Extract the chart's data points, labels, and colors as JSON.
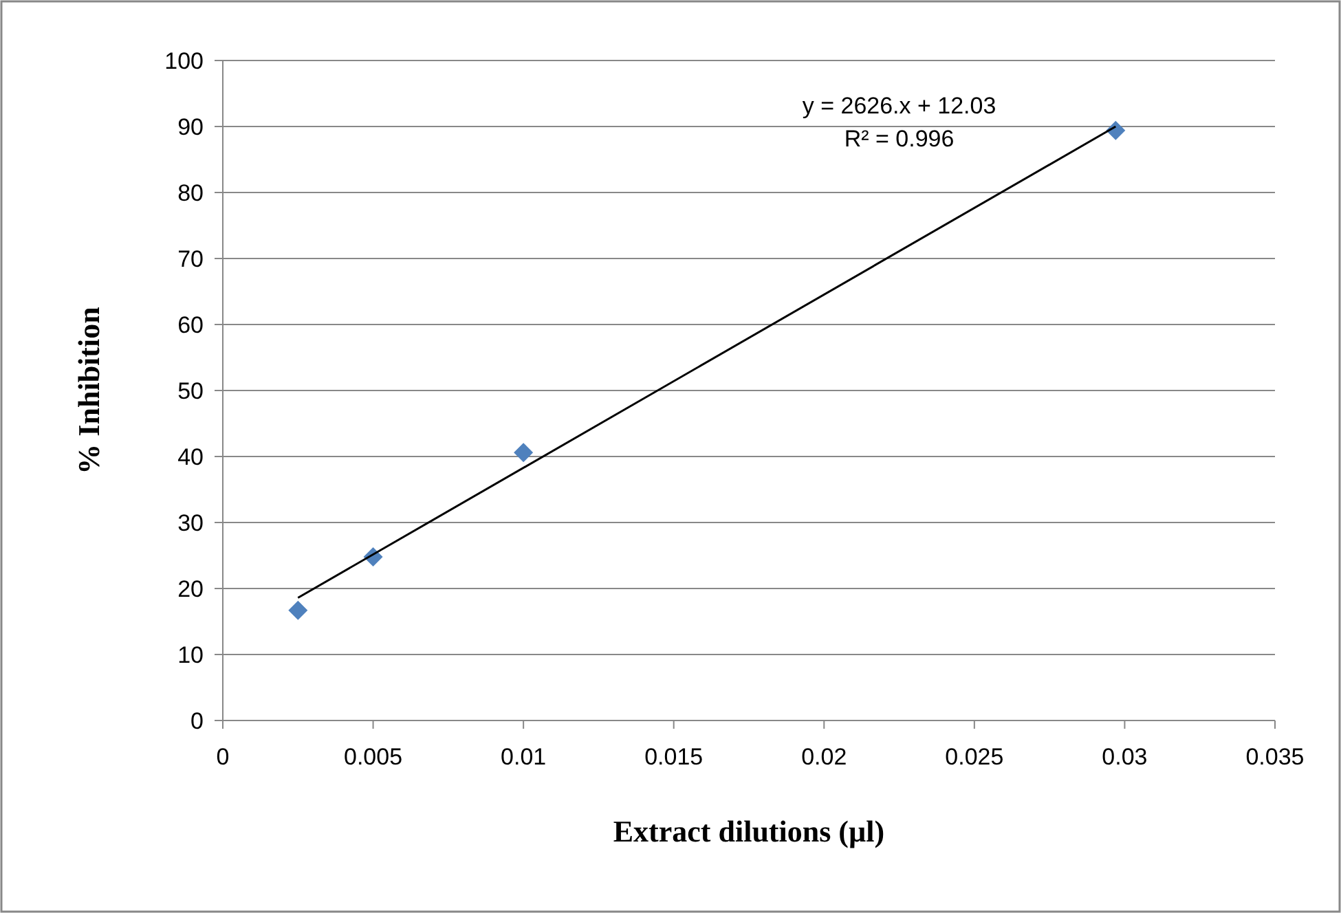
{
  "chart_data": {
    "type": "scatter",
    "xlabel": "Extract dilutions (µl)",
    "ylabel": "% Inhibition",
    "xlim": [
      0,
      0.035
    ],
    "xticks": [
      0,
      0.005,
      0.01,
      0.015,
      0.02,
      0.025,
      0.03,
      0.035
    ],
    "ylim": [
      0,
      100
    ],
    "yticks": [
      0,
      10,
      20,
      30,
      40,
      50,
      60,
      70,
      80,
      90,
      100
    ],
    "grid": "y",
    "annotations": [
      "y = 2626.x + 12.03",
      "R² = 0.996"
    ],
    "series": [
      {
        "color": "#4f81bd",
        "marker": "diamond",
        "x": [
          0.0025,
          0.005,
          0.01,
          0.0297
        ],
        "values": [
          16.7,
          24.8,
          40.6,
          89.4
        ]
      },
      {
        "type": "line",
        "color": "#000000",
        "marker": "none",
        "line_style": "solid",
        "x": [
          0.0025,
          0.0297
        ],
        "values": [
          18.6,
          90.0
        ]
      }
    ]
  }
}
